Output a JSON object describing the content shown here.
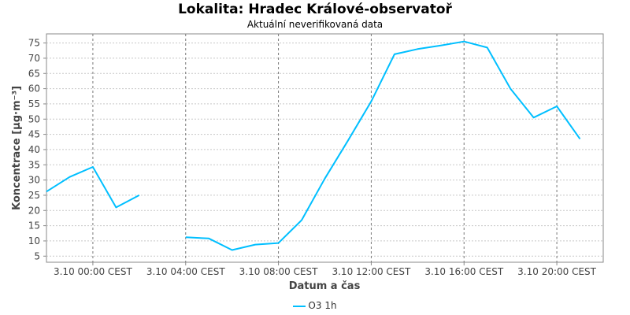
{
  "chart_data": {
    "type": "line",
    "title": "Lokalita: Hradec Králové-observatoř",
    "subtitle": "Aktuální neverifikovaná data",
    "xlabel": "Datum a čas",
    "ylabel": "Koncentrace [µg·m⁻³]",
    "ylim": [
      3,
      78
    ],
    "y_ticks": [
      5,
      10,
      15,
      20,
      25,
      30,
      35,
      40,
      45,
      50,
      55,
      60,
      65,
      70,
      75
    ],
    "xlim": [
      -2,
      22
    ],
    "x_ticks": [
      0,
      4,
      8,
      12,
      16,
      20
    ],
    "x_tick_labels": [
      "3.10 00:00 CEST",
      "3.10 04:00 CEST",
      "3.10 08:00 CEST",
      "3.10 12:00 CEST",
      "3.10 16:00 CEST",
      "3.10 20:00 CEST"
    ],
    "grid": true,
    "legend_position": "bottom",
    "series": [
      {
        "name": "O3 1h",
        "color": "#00bfff",
        "x": [
          "2.10 22:00",
          "2.10 23:00",
          "3.10 00:00",
          "3.10 01:00",
          "3.10 02:00",
          "3.10 03:00",
          "3.10 04:00",
          "3.10 05:00",
          "3.10 06:00",
          "3.10 07:00",
          "3.10 08:00",
          "3.10 09:00",
          "3.10 10:00",
          "3.10 11:00",
          "3.10 12:00",
          "3.10 13:00",
          "3.10 14:00",
          "3.10 15:00",
          "3.10 16:00",
          "3.10 17:00",
          "3.10 18:00",
          "3.10 19:00",
          "3.10 20:00",
          "3.10 21:00"
        ],
        "hours": [
          -2,
          -1,
          0,
          1,
          2,
          3,
          4,
          5,
          6,
          7,
          8,
          9,
          10,
          11,
          12,
          13,
          14,
          15,
          16,
          17,
          18,
          19,
          20,
          21
        ],
        "values": [
          26.2,
          31.0,
          34.3,
          21.0,
          25.0,
          null,
          11.2,
          10.8,
          7.0,
          8.8,
          9.3,
          16.8,
          30.5,
          43.0,
          55.8,
          71.3,
          73.0,
          74.2,
          75.5,
          73.5,
          60.0,
          50.5,
          54.2,
          43.5
        ]
      }
    ]
  }
}
